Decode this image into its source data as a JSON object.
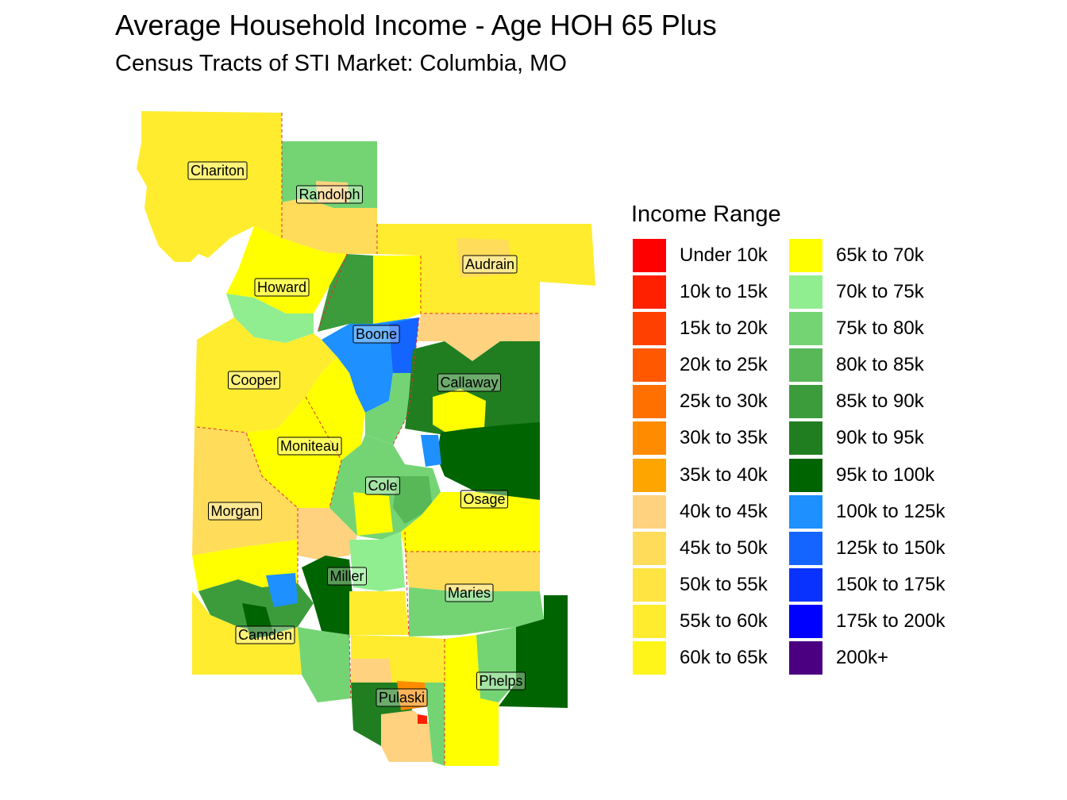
{
  "title": "Average Household Income - Age HOH 65 Plus",
  "subtitle": "Census Tracts of STI Market: Columbia, MO",
  "legend": {
    "title": "Income Range",
    "items": [
      {
        "label": "Under 10k",
        "color": "#ff0000"
      },
      {
        "label": "10k to 15k",
        "color": "#ff2000"
      },
      {
        "label": "15k to 20k",
        "color": "#ff4000"
      },
      {
        "label": "20k to 25k",
        "color": "#ff5800"
      },
      {
        "label": "25k to 30k",
        "color": "#ff7000"
      },
      {
        "label": "30k to 35k",
        "color": "#ff8c00"
      },
      {
        "label": "35k to 40k",
        "color": "#ffa500"
      },
      {
        "label": "40k to 45k",
        "color": "#ffd27f"
      },
      {
        "label": "45k to 50k",
        "color": "#ffdc5a"
      },
      {
        "label": "50k to 55k",
        "color": "#ffe442"
      },
      {
        "label": "55k to 60k",
        "color": "#ffec2e"
      },
      {
        "label": "60k to 65k",
        "color": "#fff51a"
      },
      {
        "label": "65k to 70k",
        "color": "#ffff00"
      },
      {
        "label": "70k to 75k",
        "color": "#90ee90"
      },
      {
        "label": "75k to 80k",
        "color": "#74d474"
      },
      {
        "label": "80k to 85k",
        "color": "#58b858"
      },
      {
        "label": "85k to 90k",
        "color": "#3c9c3c"
      },
      {
        "label": "90k to 95k",
        "color": "#207e20"
      },
      {
        "label": "95k to 100k",
        "color": "#006400"
      },
      {
        "label": "100k to 125k",
        "color": "#1e90ff"
      },
      {
        "label": "125k to 150k",
        "color": "#1464ff"
      },
      {
        "label": "150k to 175k",
        "color": "#0a32ff"
      },
      {
        "label": "175k to 200k",
        "color": "#0000ff"
      },
      {
        "label": "200k+",
        "color": "#4b0082"
      }
    ]
  },
  "map": {
    "counties": [
      {
        "name": "Chariton"
      },
      {
        "name": "Randolph"
      },
      {
        "name": "Audrain"
      },
      {
        "name": "Howard"
      },
      {
        "name": "Boone"
      },
      {
        "name": "Cooper"
      },
      {
        "name": "Callaway"
      },
      {
        "name": "Moniteau"
      },
      {
        "name": "Cole"
      },
      {
        "name": "Osage"
      },
      {
        "name": "Morgan"
      },
      {
        "name": "Miller"
      },
      {
        "name": "Maries"
      },
      {
        "name": "Camden"
      },
      {
        "name": "Phelps"
      },
      {
        "name": "Pulaski"
      }
    ]
  }
}
